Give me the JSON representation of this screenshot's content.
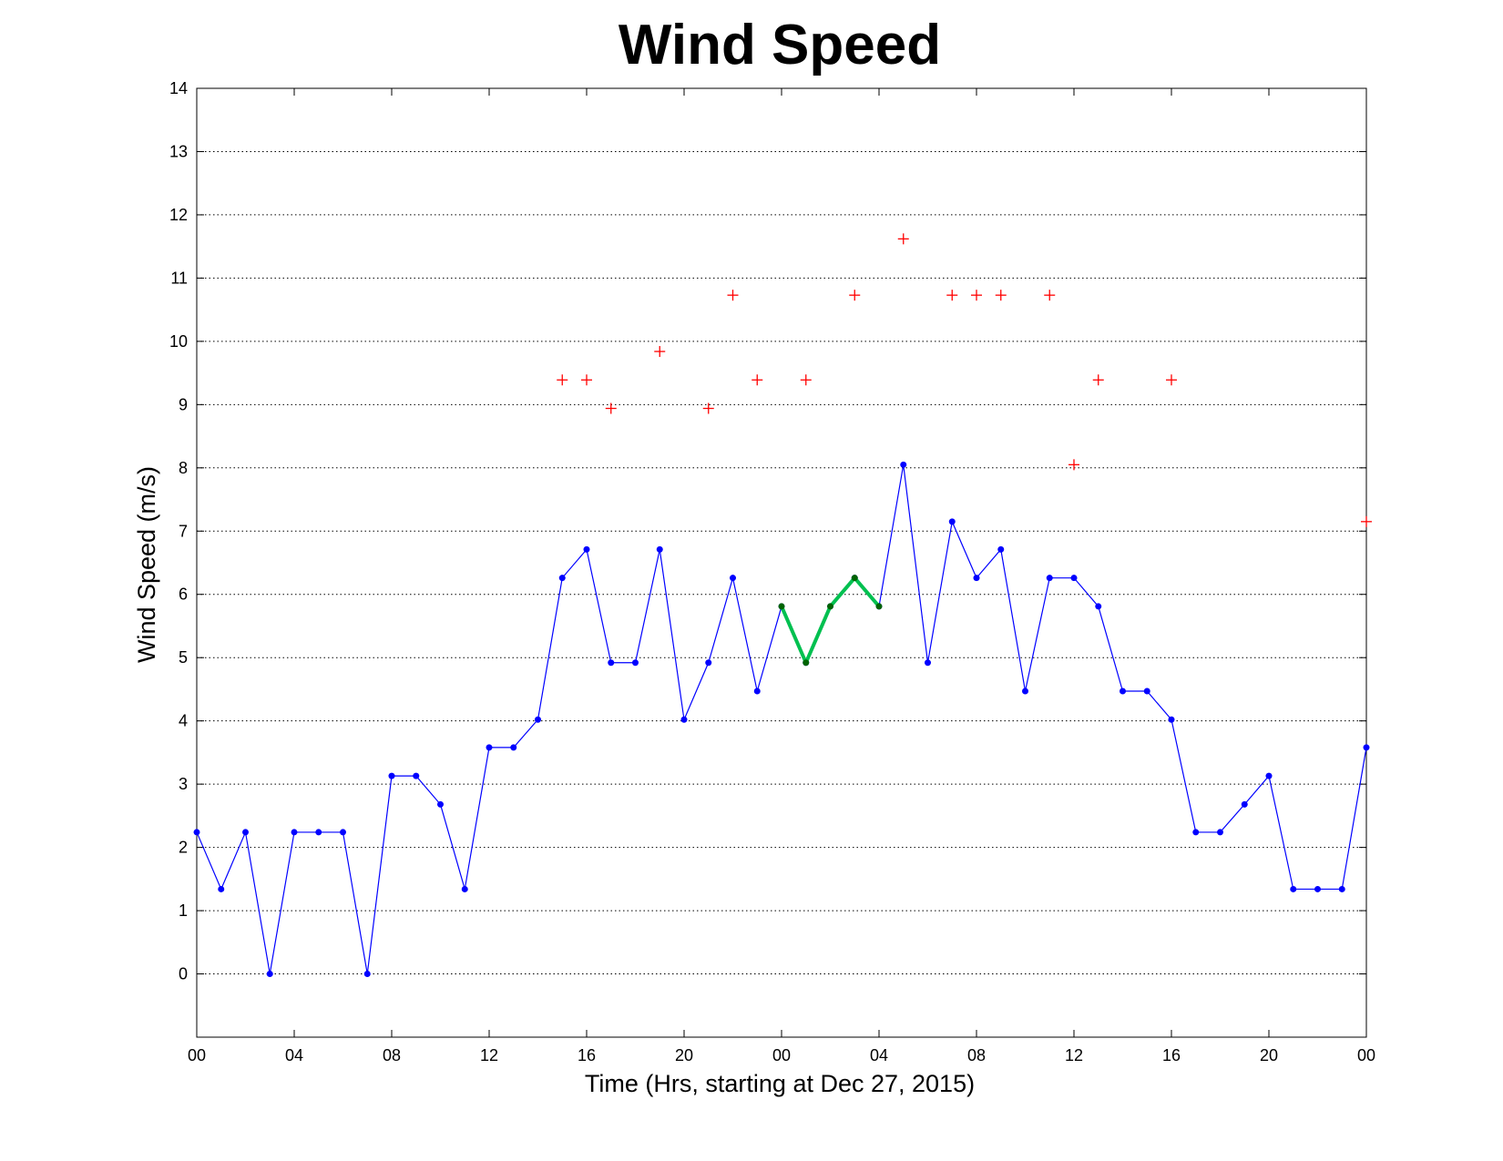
{
  "chart_data": {
    "type": "line",
    "title": "Wind Speed",
    "xlabel": "Time (Hrs, starting at Dec 27, 2015)",
    "ylabel": "Wind Speed (m/s)",
    "xlim": [
      0,
      48
    ],
    "ylim": [
      -1,
      14
    ],
    "yticks": [
      0,
      1,
      2,
      3,
      4,
      5,
      6,
      7,
      8,
      9,
      10,
      11,
      12,
      13,
      14
    ],
    "xticks": [
      0,
      4,
      8,
      12,
      16,
      20,
      24,
      28,
      32,
      36,
      40,
      44,
      48
    ],
    "xtick_labels": [
      "00",
      "04",
      "08",
      "12",
      "16",
      "20",
      "00",
      "04",
      "08",
      "12",
      "16",
      "20",
      "00"
    ],
    "grid": "horizontal dotted",
    "series": [
      {
        "style": "blue line with dot markers",
        "color": "#0000ff",
        "x": [
          0,
          1,
          2,
          3,
          4,
          5,
          6,
          7,
          8,
          9,
          10,
          11,
          12,
          13,
          14,
          15,
          16,
          17,
          18,
          19,
          20,
          21,
          22,
          23,
          24,
          25,
          26,
          27,
          28,
          29,
          30,
          31,
          32,
          33,
          34,
          35,
          36,
          37,
          38,
          39,
          40,
          41,
          42,
          43,
          44,
          45,
          46,
          47,
          48
        ],
        "y": [
          2.24,
          1.34,
          2.24,
          0,
          2.24,
          2.24,
          2.24,
          0,
          3.13,
          3.13,
          2.68,
          1.34,
          3.58,
          3.58,
          4.02,
          6.26,
          6.71,
          4.92,
          4.92,
          6.71,
          4.02,
          4.92,
          6.26,
          4.47,
          5.81,
          4.92,
          5.81,
          6.26,
          5.81,
          8.05,
          4.92,
          7.15,
          6.26,
          6.71,
          4.47,
          6.26,
          6.26,
          5.81,
          4.47,
          4.47,
          4.02,
          2.24,
          2.24,
          2.68,
          3.13,
          1.34,
          1.34,
          1.34,
          3.58
        ]
      },
      {
        "style": "thick green highlighted segment",
        "color": "#00c050",
        "marker_color": "#006400",
        "x": [
          24,
          25,
          26,
          27,
          28
        ],
        "y": [
          5.81,
          4.92,
          5.81,
          6.26,
          5.81
        ]
      },
      {
        "style": "red plus markers",
        "color": "#ff0000",
        "x": [
          15,
          16,
          17,
          19,
          21,
          22,
          23,
          25,
          27,
          29,
          31,
          32,
          33,
          35,
          36,
          37,
          40,
          48
        ],
        "y": [
          9.39,
          9.39,
          8.94,
          9.84,
          8.94,
          10.73,
          9.39,
          9.39,
          10.73,
          11.62,
          10.73,
          10.73,
          10.73,
          10.73,
          8.05,
          9.39,
          9.39,
          7.15
        ]
      }
    ]
  }
}
